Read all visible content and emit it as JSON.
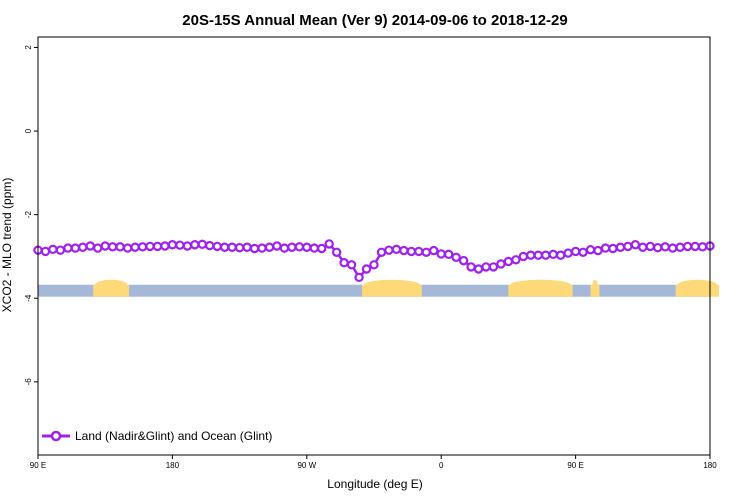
{
  "chart_data": {
    "type": "line",
    "title": "20S-15S Annual Mean (Ver 9)   2014-09-06 to 2018-12-29",
    "xlabel": "Longitude (deg E)",
    "ylabel": "XCO2 - MLO trend (ppm)",
    "ylim": [
      -7.75,
      2.25
    ],
    "x_tick_labels": [
      "90 E",
      "180",
      "90 W",
      "0",
      "90 E",
      "180"
    ],
    "y_tick_labels": [
      "2",
      "0",
      "-2",
      "-4",
      "-6"
    ],
    "y_ticks": [
      2,
      0,
      -2,
      -4,
      -6
    ],
    "legend": {
      "position": "bottom-left",
      "entries": [
        "Land (Nadir&Glint) and Ocean (Glint)"
      ]
    },
    "colors": {
      "series": "#a020f0",
      "ocean": "#a5b8d8",
      "land": "#fdd97a"
    },
    "series": [
      {
        "name": "Land (Nadir&Glint) and Ocean (Glint)",
        "x": [
          90,
          95,
          100,
          105,
          110,
          115,
          120,
          125,
          130,
          135,
          140,
          145,
          150,
          155,
          160,
          165,
          170,
          175,
          180,
          185,
          190,
          195,
          200,
          205,
          210,
          215,
          220,
          225,
          230,
          235,
          240,
          245,
          250,
          255,
          260,
          265,
          270,
          275,
          280,
          285,
          290,
          295,
          300,
          305,
          310,
          315,
          320,
          325,
          330,
          335,
          340,
          345,
          350,
          355,
          360,
          365,
          370,
          375,
          380,
          385,
          390,
          395,
          400,
          405,
          410,
          415,
          420,
          425,
          430,
          435,
          440,
          445,
          450,
          455,
          460,
          465,
          470,
          475,
          480,
          485,
          490,
          495,
          500,
          505,
          510,
          515,
          520,
          525,
          530,
          535,
          540
        ],
        "y": [
          -2.85,
          -2.88,
          -2.83,
          -2.85,
          -2.8,
          -2.8,
          -2.78,
          -2.75,
          -2.8,
          -2.75,
          -2.77,
          -2.77,
          -2.8,
          -2.78,
          -2.77,
          -2.76,
          -2.76,
          -2.75,
          -2.72,
          -2.73,
          -2.75,
          -2.72,
          -2.71,
          -2.74,
          -2.76,
          -2.78,
          -2.78,
          -2.79,
          -2.78,
          -2.81,
          -2.8,
          -2.78,
          -2.75,
          -2.8,
          -2.78,
          -2.77,
          -2.78,
          -2.8,
          -2.81,
          -2.7,
          -2.9,
          -3.15,
          -3.2,
          -3.5,
          -3.3,
          -3.2,
          -2.9,
          -2.85,
          -2.83,
          -2.86,
          -2.88,
          -2.88,
          -2.9,
          -2.86,
          -2.94,
          -2.95,
          -3.02,
          -3.1,
          -3.25,
          -3.3,
          -3.25,
          -3.25,
          -3.18,
          -3.12,
          -3.08,
          -3.0,
          -2.97,
          -2.97,
          -2.97,
          -2.95,
          -2.97,
          -2.92,
          -2.88,
          -2.9,
          -2.84,
          -2.86,
          -2.8,
          -2.81,
          -2.78,
          -2.76,
          -2.72,
          -2.78,
          -2.76,
          -2.79,
          -2.77,
          -2.8,
          -2.78,
          -2.76,
          -2.76,
          -2.77,
          -2.75
        ]
      }
    ],
    "surface_band": {
      "y": -3.82,
      "land_ranges": [
        [
          127,
          151
        ],
        [
          307,
          347
        ],
        [
          405,
          448
        ],
        [
          460,
          466
        ],
        [
          517,
          546
        ]
      ]
    }
  }
}
